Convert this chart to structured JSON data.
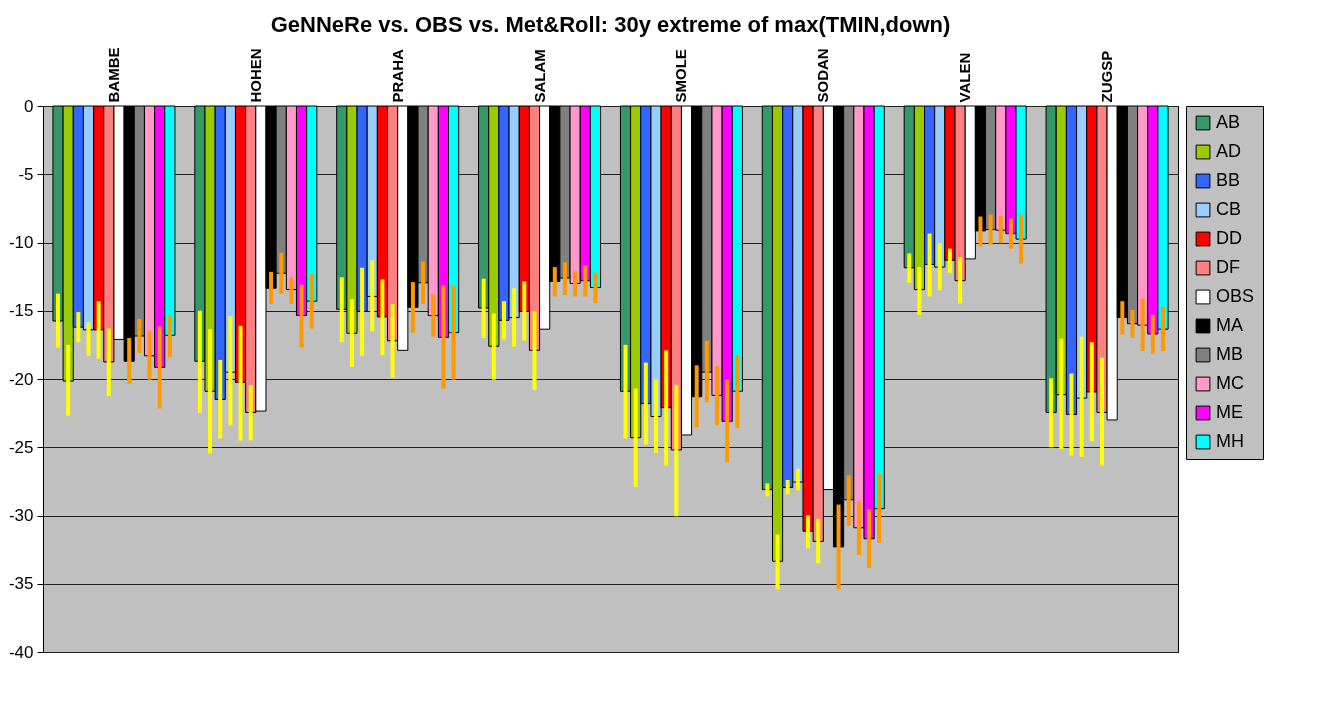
{
  "chart_data": {
    "type": "bar",
    "title": "GeNNeRe  vs.  OBS  vs.  Met&Roll:     30y extreme of  max(TMIN,down)",
    "categories": [
      "BAMBE",
      "HOHEN",
      "PRAHA",
      "SALAM",
      "SMOLE",
      "SODAN",
      "VALEN",
      "ZUGSP"
    ],
    "ylim": [
      -40,
      0
    ],
    "yticks": [
      -40,
      -35,
      -30,
      -25,
      -20,
      -15,
      -10,
      -5,
      0
    ],
    "grid": "y",
    "legend": "right",
    "series": [
      {
        "name": "AB",
        "color": "#339966",
        "values": [
          -15.75,
          -18.7,
          -14.9,
          -14.8,
          -20.9,
          -28.1,
          -11.85,
          -22.45
        ],
        "errors": [
          [
            -17.7,
            -13.75
          ],
          [
            -22.45,
            -15.0
          ],
          [
            -17.3,
            -12.55
          ],
          [
            -17.0,
            -12.65
          ],
          [
            -24.35,
            -17.5
          ],
          [
            -28.6,
            -27.65
          ],
          [
            -12.95,
            -10.8
          ],
          [
            -25.0,
            -19.95
          ]
        ]
      },
      {
        "name": "AD",
        "color": "#99cc00",
        "values": [
          -20.15,
          -20.9,
          -16.65,
          -17.6,
          -24.3,
          -33.35,
          -13.45,
          -21.15
        ],
        "errors": [
          [
            -22.7,
            -17.5
          ],
          [
            -25.45,
            -16.35
          ],
          [
            -19.1,
            -14.15
          ],
          [
            -20.05,
            -15.2
          ],
          [
            -27.9,
            -20.7
          ],
          [
            -35.4,
            -31.4
          ],
          [
            -15.3,
            -11.8
          ],
          [
            -25.15,
            -17.05
          ]
        ]
      },
      {
        "name": "BB",
        "color": "#3366ff",
        "values": [
          -16.2,
          -21.5,
          -15.05,
          -15.7,
          -21.8,
          -27.95,
          -11.6,
          -22.6
        ],
        "errors": [
          [
            -17.3,
            -15.1
          ],
          [
            -24.35,
            -18.6
          ],
          [
            -18.3,
            -11.85
          ],
          [
            -17.1,
            -14.3
          ],
          [
            -24.8,
            -18.8
          ],
          [
            -28.45,
            -27.4
          ],
          [
            -13.95,
            -9.35
          ],
          [
            -25.6,
            -19.6
          ]
        ]
      },
      {
        "name": "CB",
        "color": "#99ccff",
        "values": [
          -16.4,
          -19.5,
          -13.95,
          -15.5,
          -22.75,
          -27.55,
          -11.8,
          -21.4
        ],
        "errors": [
          [
            -18.3,
            -15.85
          ],
          [
            -23.4,
            -15.4
          ],
          [
            -16.5,
            -11.3
          ],
          [
            -17.65,
            -13.35
          ],
          [
            -25.4,
            -20.05
          ],
          [
            -28.15,
            -26.6
          ],
          [
            -13.5,
            -10.05
          ],
          [
            -25.7,
            -16.9
          ]
        ]
      },
      {
        "name": "DD",
        "color": "#ff0000",
        "values": [
          -16.4,
          -20.25,
          -15.45,
          -15.05,
          -22.1,
          -31.15,
          -11.3,
          -20.95
        ],
        "errors": [
          [
            -18.5,
            -14.3
          ],
          [
            -24.5,
            -16.1
          ],
          [
            -18.25,
            -12.7
          ],
          [
            -17.2,
            -12.85
          ],
          [
            -26.35,
            -17.9
          ],
          [
            -32.4,
            -30.0
          ],
          [
            -12.25,
            -10.45
          ],
          [
            -24.55,
            -17.3
          ]
        ]
      },
      {
        "name": "DF",
        "color": "#ff8080",
        "values": [
          -18.75,
          -22.45,
          -17.2,
          -17.9,
          -25.2,
          -31.9,
          -12.8,
          -22.45
        ],
        "errors": [
          [
            -21.25,
            -16.3
          ],
          [
            -24.5,
            -20.45
          ],
          [
            -19.9,
            -14.5
          ],
          [
            -20.8,
            -15.05
          ],
          [
            -30.05,
            -20.45
          ],
          [
            -33.5,
            -30.25
          ],
          [
            -14.45,
            -11.1
          ],
          [
            -26.35,
            -18.45
          ]
        ]
      },
      {
        "name": "OBS",
        "color": "#ffffff",
        "values": [
          -17.1,
          -22.35,
          -17.9,
          -16.35,
          -24.1,
          -28.1,
          -11.2,
          -23.0
        ]
      },
      {
        "name": "MA",
        "color": "#000000",
        "values": [
          -18.7,
          -13.35,
          -14.75,
          -12.85,
          -21.3,
          -32.3,
          -9.15,
          -15.5
        ],
        "errors": [
          [
            -20.35,
            -17.0
          ],
          [
            -14.5,
            -12.15
          ],
          [
            -16.6,
            -12.9
          ],
          [
            -13.95,
            -11.8
          ],
          [
            -23.55,
            -19.0
          ],
          [
            -35.4,
            -29.2
          ],
          [
            -10.3,
            -8.1
          ],
          [
            -16.75,
            -14.3
          ]
        ]
      },
      {
        "name": "MB",
        "color": "#808080",
        "values": [
          -16.85,
          -12.25,
          -12.95,
          -12.6,
          -19.5,
          -28.85,
          -9.05,
          -15.95
        ],
        "errors": [
          [
            -18.1,
            -15.6
          ],
          [
            -13.75,
            -10.75
          ],
          [
            -14.5,
            -11.4
          ],
          [
            -13.85,
            -11.45
          ],
          [
            -21.7,
            -17.2
          ],
          [
            -30.75,
            -27.05
          ],
          [
            -10.15,
            -7.95
          ],
          [
            -17.0,
            -14.95
          ]
        ]
      },
      {
        "name": "MC",
        "color": "#ff99cc",
        "values": [
          -18.3,
          -13.45,
          -15.35,
          -13.0,
          -21.2,
          -30.9,
          -9.1,
          -16.05
        ],
        "errors": [
          [
            -20.05,
            -16.5
          ],
          [
            -14.5,
            -12.55
          ],
          [
            -16.9,
            -13.8
          ],
          [
            -13.95,
            -12.1
          ],
          [
            -23.4,
            -19.05
          ],
          [
            -32.9,
            -28.95
          ],
          [
            -10.05,
            -8.05
          ],
          [
            -17.95,
            -14.1
          ]
        ]
      },
      {
        "name": "ME",
        "color": "#ff00ff",
        "values": [
          -19.15,
          -15.35,
          -16.95,
          -12.8,
          -23.1,
          -31.7,
          -9.35,
          -16.7
        ],
        "errors": [
          [
            -22.15,
            -16.15
          ],
          [
            -17.7,
            -13.1
          ],
          [
            -20.7,
            -13.15
          ],
          [
            -13.95,
            -11.7
          ],
          [
            -26.1,
            -20.05
          ],
          [
            -33.85,
            -29.55
          ],
          [
            -10.45,
            -8.25
          ],
          [
            -18.15,
            -15.3
          ]
        ]
      },
      {
        "name": "MH",
        "color": "#00ffff",
        "values": [
          -16.8,
          -14.3,
          -16.6,
          -13.3,
          -20.9,
          -29.5,
          -9.75,
          -16.35
        ],
        "errors": [
          [
            -18.4,
            -15.3
          ],
          [
            -16.3,
            -12.3
          ],
          [
            -20.05,
            -13.15
          ],
          [
            -14.45,
            -12.2
          ],
          [
            -23.6,
            -18.25
          ],
          [
            -32.0,
            -26.95
          ],
          [
            -11.55,
            -7.95
          ],
          [
            -17.95,
            -14.7
          ]
        ]
      }
    ]
  }
}
